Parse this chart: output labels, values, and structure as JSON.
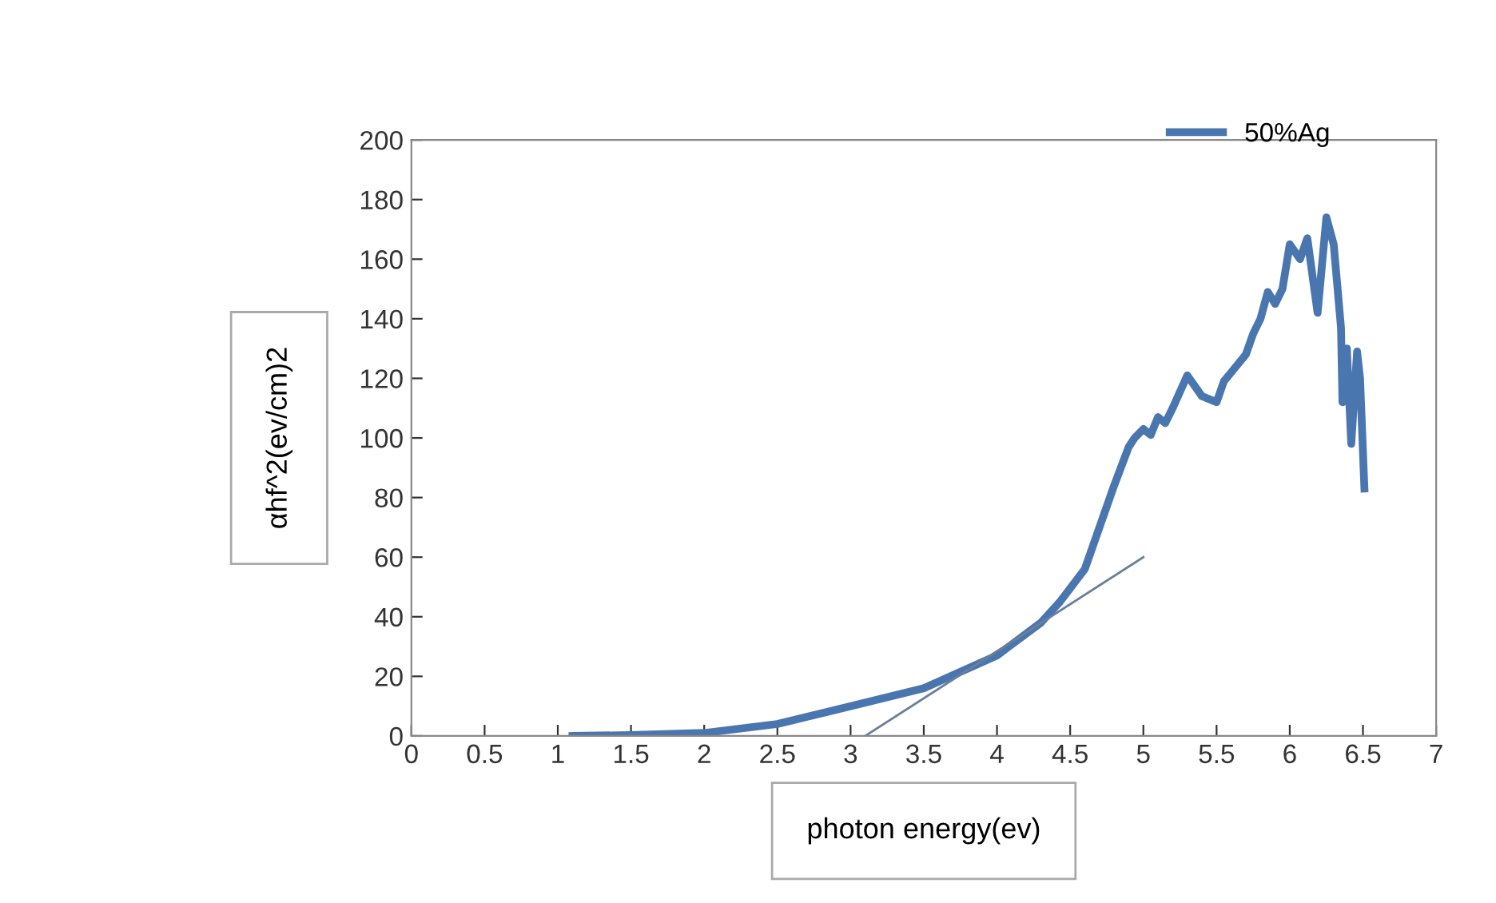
{
  "chart_data": {
    "type": "line",
    "xlabel": "photon energy(ev)",
    "ylabel": "αhf^2(ev/cm)2",
    "xlim": [
      0,
      7
    ],
    "xticks": [
      0,
      0.5,
      1,
      1.5,
      2,
      2.5,
      3,
      3.5,
      4,
      4.5,
      5,
      5.5,
      6,
      6.5,
      7
    ],
    "ylim": [
      0,
      200
    ],
    "yticks": [
      0,
      20,
      40,
      60,
      80,
      100,
      120,
      140,
      160,
      180,
      200
    ],
    "grid": false,
    "legend": "top right",
    "marker": "none",
    "line_style": "solid",
    "series": [
      {
        "name": "50%Ag",
        "color": "#4a76b0",
        "x": [
          1.1,
          1.5,
          2.0,
          2.5,
          3.0,
          3.5,
          4.0,
          4.3,
          4.43,
          4.6,
          4.7,
          4.8,
          4.9,
          4.94,
          5.0,
          5.05,
          5.1,
          5.15,
          5.2,
          5.3,
          5.4,
          5.5,
          5.55,
          5.6,
          5.7,
          5.75,
          5.8,
          5.85,
          5.9,
          5.95,
          6.0,
          6.07,
          6.12,
          6.19,
          6.25,
          6.3,
          6.35,
          6.36,
          6.39,
          6.42,
          6.46,
          6.48,
          6.51
        ],
        "values": [
          0,
          0.3,
          1,
          4,
          10,
          16,
          27,
          38,
          45,
          56,
          70,
          84,
          97,
          100,
          103,
          101,
          107,
          105,
          110,
          121,
          114,
          112,
          119,
          122,
          128,
          135,
          140,
          149,
          145,
          150,
          165,
          160,
          167,
          142,
          174,
          165,
          137,
          112,
          130,
          98,
          129,
          120,
          83
        ]
      },
      {
        "type": "line",
        "color": "#6a7f9a",
        "x": [
          3.1,
          5.0
        ],
        "values": [
          0,
          60
        ]
      }
    ]
  }
}
